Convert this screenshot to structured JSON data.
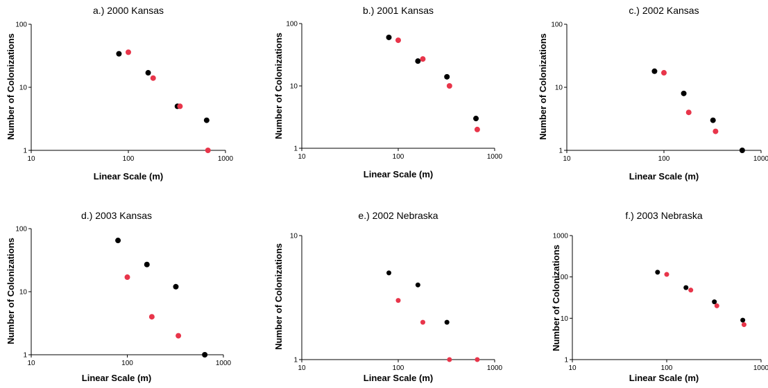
{
  "chart_data": [
    {
      "type": "scatter",
      "title": "a.) 2000 Kansas",
      "xlabel": "Linear Scale (m)",
      "ylabel": "Number of Colonizations",
      "xscale": "log",
      "yscale": "log",
      "xlim": [
        10,
        1000
      ],
      "ylim": [
        1,
        100
      ],
      "xticks": [
        "10",
        "100",
        "1000"
      ],
      "yticks": [
        "1",
        "10",
        "100"
      ],
      "grid": false,
      "series": [
        {
          "color": "#000000",
          "x": [
            80,
            160,
            320,
            640
          ],
          "y": [
            34,
            17,
            5,
            3
          ]
        },
        {
          "color": "#e8354a",
          "x": [
            100,
            180,
            340,
            660
          ],
          "y": [
            36,
            14,
            5,
            1
          ]
        }
      ]
    },
    {
      "type": "scatter",
      "title": "b.) 2001 Kansas",
      "xlabel": "Linear Scale (m)",
      "ylabel": "Number of Colonizations",
      "xscale": "log",
      "yscale": "log",
      "xlim": [
        10,
        1000
      ],
      "ylim": [
        1,
        100
      ],
      "xticks": [
        "10",
        "100",
        "1000"
      ],
      "yticks": [
        "1",
        "10",
        "100"
      ],
      "grid": false,
      "series": [
        {
          "color": "#000000",
          "x": [
            80,
            160,
            320,
            640
          ],
          "y": [
            60,
            25,
            14,
            3
          ]
        },
        {
          "color": "#e8354a",
          "x": [
            100,
            180,
            340,
            660
          ],
          "y": [
            54,
            27,
            10,
            2
          ]
        }
      ]
    },
    {
      "type": "scatter",
      "title": "c.) 2002 Kansas",
      "xlabel": "Linear Scale (m)",
      "ylabel": "Number of Colonizations",
      "xscale": "log",
      "yscale": "log",
      "xlim": [
        10,
        1000
      ],
      "ylim": [
        1,
        100
      ],
      "xticks": [
        "10",
        "100",
        "1000"
      ],
      "yticks": [
        "1",
        "10",
        "100"
      ],
      "grid": false,
      "series": [
        {
          "color": "#000000",
          "x": [
            80,
            160,
            320,
            640
          ],
          "y": [
            18,
            8,
            3,
            1
          ]
        },
        {
          "color": "#e8354a",
          "x": [
            100,
            180,
            340
          ],
          "y": [
            17,
            4,
            2
          ]
        }
      ]
    },
    {
      "type": "scatter",
      "title": "d.) 2003 Kansas",
      "xlabel": "Linear Scale (m)",
      "ylabel": "Number of Colonizations",
      "xscale": "log",
      "yscale": "log",
      "xlim": [
        10,
        1000
      ],
      "ylim": [
        1,
        100
      ],
      "xticks": [
        "10",
        "100",
        "1000"
      ],
      "yticks": [
        "1",
        "10",
        "100"
      ],
      "grid": false,
      "series": [
        {
          "color": "#000000",
          "x": [
            80,
            160,
            320,
            640
          ],
          "y": [
            65,
            27,
            12,
            1
          ]
        },
        {
          "color": "#e8354a",
          "x": [
            100,
            180,
            340
          ],
          "y": [
            17,
            4,
            2
          ]
        }
      ]
    },
    {
      "type": "scatter",
      "title": "e.) 2002 Nebraska",
      "xlabel": "Linear Scale (m)",
      "ylabel": "Number of Colonizations",
      "xscale": "log",
      "yscale": "log",
      "xlim": [
        10,
        1000
      ],
      "ylim": [
        1,
        10
      ],
      "xticks": [
        "10",
        "100",
        "1000"
      ],
      "yticks": [
        "1",
        "10"
      ],
      "grid": false,
      "series": [
        {
          "color": "#000000",
          "x": [
            80,
            160,
            320
          ],
          "y": [
            5,
            4,
            2
          ]
        },
        {
          "color": "#e8354a",
          "x": [
            100,
            180,
            340,
            660
          ],
          "y": [
            3,
            2,
            1,
            1
          ]
        }
      ]
    },
    {
      "type": "scatter",
      "title": "f.) 2003 Nebraska",
      "xlabel": "Linear Scale (m)",
      "ylabel": "Number of Colonizations",
      "xscale": "log",
      "yscale": "log",
      "xlim": [
        10,
        1000
      ],
      "ylim": [
        1,
        1000
      ],
      "xticks": [
        "10",
        "100",
        "1000"
      ],
      "yticks": [
        "1",
        "10",
        "100",
        "1000"
      ],
      "grid": false,
      "series": [
        {
          "color": "#000000",
          "x": [
            80,
            160,
            320,
            640
          ],
          "y": [
            130,
            55,
            25,
            9
          ]
        },
        {
          "color": "#e8354a",
          "x": [
            100,
            180,
            340,
            660
          ],
          "y": [
            115,
            48,
            20,
            7
          ]
        }
      ]
    }
  ]
}
